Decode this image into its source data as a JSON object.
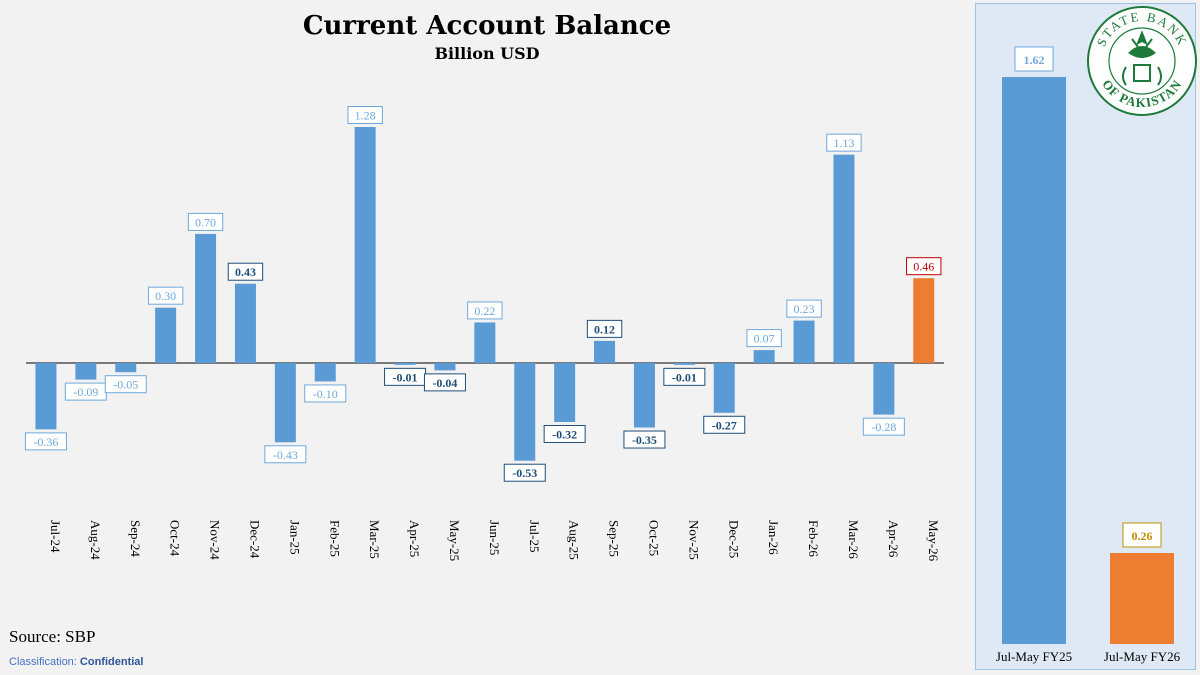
{
  "chart_data": [
    {
      "type": "bar",
      "title": "Current Account Balance",
      "subtitle": "Billion USD",
      "categories": [
        "Jul-24",
        "Aug-24",
        "Sep-24",
        "Oct-24",
        "Nov-24",
        "Dec-24",
        "Jan-25",
        "Feb-25",
        "Mar-25",
        "Apr-25",
        "May-25",
        "Jun-25",
        "Jul-25",
        "Aug-25",
        "Sep-25",
        "Oct-25",
        "Nov-25",
        "Dec-25",
        "Jan-26",
        "Feb-26",
        "Mar-26",
        "Apr-26",
        "May-26"
      ],
      "values": [
        -0.36,
        -0.09,
        -0.05,
        0.3,
        0.7,
        0.43,
        -0.43,
        -0.1,
        1.28,
        -0.01,
        -0.04,
        0.22,
        -0.53,
        -0.32,
        0.12,
        -0.35,
        -0.01,
        -0.27,
        0.07,
        0.23,
        1.13,
        -0.28,
        0.46
      ],
      "labels": [
        "-0.36",
        "-0.09",
        "-0.05",
        "0.30",
        "0.70",
        "0.43",
        "-0.43",
        "-0.10",
        "1.28",
        "-0.01",
        "-0.04",
        "0.22",
        "-0.53",
        "-0.32",
        "0.12",
        "-0.35",
        "-0.01",
        "-0.27",
        "0.07",
        "0.23",
        "1.13",
        "-0.28",
        "0.46"
      ],
      "label_bold": [
        false,
        false,
        false,
        false,
        false,
        true,
        false,
        false,
        false,
        true,
        true,
        false,
        true,
        true,
        true,
        true,
        true,
        true,
        false,
        false,
        false,
        false,
        false
      ],
      "highlight_last": true,
      "ylim": [
        -0.53,
        1.28
      ],
      "grid": false,
      "xlabel": "",
      "ylabel": ""
    },
    {
      "type": "bar",
      "categories": [
        "Jul-May FY25",
        "Jul-May FY26"
      ],
      "values": [
        1.62,
        0.26
      ],
      "labels": [
        "1.62",
        "0.26"
      ],
      "ylim": [
        0,
        1.62
      ],
      "grid": false
    }
  ],
  "colors": {
    "bar": "#5b9bd5",
    "highlight": "#ed7d31",
    "label_light": "#6fa8dc",
    "label_dark": "#1f4e79",
    "label_red": "#c00000",
    "label_gold": "#bf9000",
    "logo_green": "#1e7a3a"
  },
  "footer": {
    "source": "Source: SBP",
    "classification_label": "Classification: ",
    "classification_value": "Confidential"
  },
  "logo": {
    "icon": "sbp-emblem-icon",
    "text_top": "STATE BANK",
    "text_bottom": "OF PAKISTAN"
  }
}
